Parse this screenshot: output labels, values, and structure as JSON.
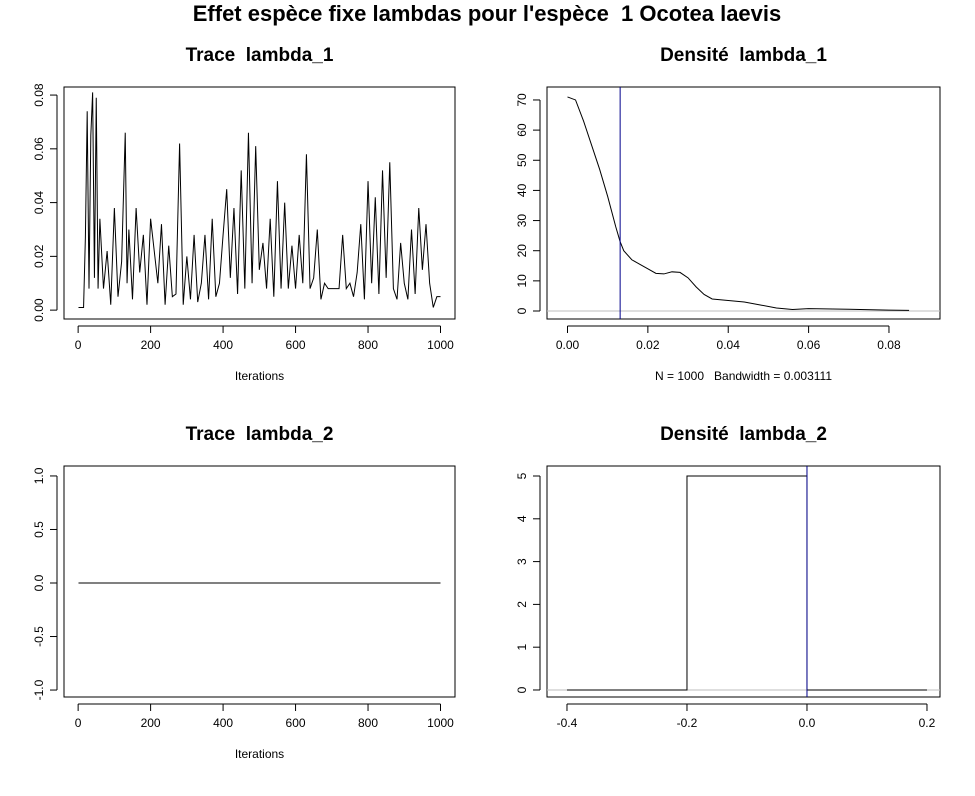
{
  "title": "Effet espèce fixe lambdas pour l'espèce  1 Ocotea laevis",
  "chart_data": [
    {
      "type": "line",
      "title": "Trace  lambda_1",
      "xlabel": "Iterations",
      "color": "#000000",
      "x": [
        1,
        15,
        20,
        25,
        30,
        35,
        40,
        45,
        50,
        55,
        60,
        70,
        80,
        90,
        100,
        110,
        120,
        130,
        135,
        140,
        150,
        160,
        170,
        180,
        190,
        200,
        210,
        220,
        230,
        240,
        250,
        260,
        270,
        280,
        290,
        300,
        310,
        320,
        330,
        340,
        350,
        360,
        370,
        380,
        390,
        400,
        410,
        420,
        430,
        440,
        450,
        460,
        470,
        480,
        490,
        500,
        510,
        520,
        530,
        540,
        550,
        560,
        570,
        580,
        590,
        600,
        610,
        620,
        630,
        640,
        650,
        660,
        670,
        680,
        690,
        700,
        710,
        720,
        730,
        740,
        750,
        760,
        770,
        780,
        790,
        800,
        810,
        820,
        830,
        840,
        850,
        860,
        870,
        880,
        890,
        900,
        910,
        920,
        930,
        940,
        950,
        960,
        970,
        980,
        990,
        1000
      ],
      "values": [
        0.001,
        0.001,
        0.027,
        0.074,
        0.008,
        0.065,
        0.081,
        0.012,
        0.079,
        0.008,
        0.034,
        0.008,
        0.022,
        0.002,
        0.038,
        0.005,
        0.018,
        0.066,
        0.01,
        0.03,
        0.004,
        0.038,
        0.014,
        0.028,
        0.002,
        0.034,
        0.022,
        0.01,
        0.032,
        0.002,
        0.024,
        0.005,
        0.006,
        0.062,
        0.002,
        0.02,
        0.004,
        0.028,
        0.003,
        0.01,
        0.028,
        0.004,
        0.034,
        0.005,
        0.01,
        0.028,
        0.045,
        0.012,
        0.038,
        0.006,
        0.052,
        0.008,
        0.066,
        0.01,
        0.061,
        0.015,
        0.025,
        0.008,
        0.034,
        0.005,
        0.048,
        0.008,
        0.04,
        0.008,
        0.024,
        0.008,
        0.028,
        0.01,
        0.058,
        0.008,
        0.012,
        0.03,
        0.004,
        0.01,
        0.008,
        0.008,
        0.008,
        0.008,
        0.028,
        0.008,
        0.01,
        0.005,
        0.014,
        0.032,
        0.004,
        0.048,
        0.01,
        0.042,
        0.006,
        0.052,
        0.012,
        0.055,
        0.008,
        0.004,
        0.025,
        0.01,
        0.004,
        0.03,
        0.006,
        0.038,
        0.015,
        0.032,
        0.01,
        0.001,
        0.005,
        0.005
      ],
      "xlim": [
        -39,
        1040
      ],
      "ylim": [
        -0.0033,
        0.083
      ],
      "xticks": [
        0,
        200,
        400,
        600,
        800,
        1000
      ],
      "yticks": [
        {
          "value": 0,
          "label": "0.00"
        },
        {
          "value": 0.02,
          "label": "0.02"
        },
        {
          "value": 0.04,
          "label": "0.04"
        },
        {
          "value": 0.06,
          "label": "0.06"
        },
        {
          "value": 0.08,
          "label": "0.08"
        }
      ]
    },
    {
      "type": "density",
      "title": "Densité  lambda_1",
      "xlabel": "N = 1000   Bandwidth = 0.003111",
      "color": "#000000",
      "vline": 0.0131,
      "vline_color": "#00008b",
      "x": [
        0,
        0.002,
        0.004,
        0.006,
        0.008,
        0.01,
        0.012,
        0.0131,
        0.014,
        0.016,
        0.018,
        0.02,
        0.022,
        0.024,
        0.026,
        0.028,
        0.03,
        0.032,
        0.034,
        0.036,
        0.04,
        0.044,
        0.048,
        0.052,
        0.056,
        0.06,
        0.07,
        0.08,
        0.085
      ],
      "values": [
        71,
        70,
        63,
        55,
        47,
        38,
        28,
        23,
        20,
        17,
        15.5,
        14,
        12.5,
        12.3,
        13,
        12.8,
        11,
        8,
        5.5,
        4,
        3.5,
        3,
        2,
        1,
        0.5,
        0.8,
        0.6,
        0.3,
        0.2
      ],
      "xlim": [
        -0.0051,
        0.0927
      ],
      "ylim": [
        -2.65,
        74.3
      ],
      "xticks": [
        {
          "value": 0,
          "label": "0.00"
        },
        {
          "value": 0.02,
          "label": "0.02"
        },
        {
          "value": 0.04,
          "label": "0.04"
        },
        {
          "value": 0.06,
          "label": "0.06"
        },
        {
          "value": 0.08,
          "label": "0.08"
        }
      ],
      "yticks": [
        0,
        10,
        20,
        30,
        40,
        50,
        60,
        70
      ]
    },
    {
      "type": "line",
      "title": "Trace  lambda_2",
      "xlabel": "Iterations",
      "color": "#000000",
      "x": [
        1,
        1000
      ],
      "values": [
        0,
        0
      ],
      "xlim": [
        -39,
        1040
      ],
      "ylim": [
        -1.065,
        1.093
      ],
      "xticks": [
        0,
        200,
        400,
        600,
        800,
        1000
      ],
      "yticks": [
        {
          "value": -1,
          "label": "-1.0"
        },
        {
          "value": -0.5,
          "label": "-0.5"
        },
        {
          "value": 0,
          "label": "0.0"
        },
        {
          "value": 0.5,
          "label": "0.5"
        },
        {
          "value": 1,
          "label": "1.0"
        }
      ]
    },
    {
      "type": "density",
      "title": "Densité  lambda_2",
      "color": "#000000",
      "vline": 0,
      "vline_color": "#00008b",
      "x": [
        -0.4,
        -0.2,
        -0.2,
        0,
        0,
        0.2
      ],
      "values": [
        0,
        0,
        5,
        5,
        0,
        0
      ],
      "xlim": [
        -0.4333,
        0.2217
      ],
      "ylim": [
        -0.164,
        5.234
      ],
      "xticks": [
        {
          "value": -0.4,
          "label": "-0.4"
        },
        {
          "value": -0.2,
          "label": "-0.2"
        },
        {
          "value": 0,
          "label": "0.0"
        },
        {
          "value": 0.2,
          "label": "0.2"
        }
      ],
      "yticks": [
        0,
        1,
        2,
        3,
        4,
        5
      ]
    }
  ]
}
